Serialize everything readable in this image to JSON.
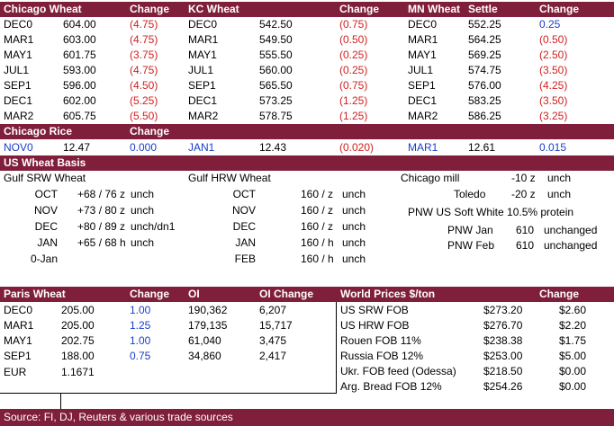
{
  "futures_header": {
    "chicago_label": "Chicago Wheat",
    "change1": "Change",
    "kc_label": "KC Wheat",
    "change2": "Change",
    "mn_label": "MN Wheat",
    "settle": "Settle",
    "change3": "Change"
  },
  "futures_rows": [
    {
      "c_m": "DEC0",
      "c_p": "604.00",
      "c_c": "(4.75)",
      "k_m": "DEC0",
      "k_p": "542.50",
      "k_c": "(0.75)",
      "m_m": "DEC0",
      "m_p": "552.25",
      "m_c": "0.25",
      "m_c_pos": true
    },
    {
      "c_m": "MAR1",
      "c_p": "603.00",
      "c_c": "(4.75)",
      "k_m": "MAR1",
      "k_p": "549.50",
      "k_c": "(0.50)",
      "m_m": "MAR1",
      "m_p": "564.25",
      "m_c": "(0.50)",
      "m_c_pos": false
    },
    {
      "c_m": "MAY1",
      "c_p": "601.75",
      "c_c": "(3.75)",
      "k_m": "MAY1",
      "k_p": "555.50",
      "k_c": "(0.25)",
      "m_m": "MAY1",
      "m_p": "569.25",
      "m_c": "(2.50)",
      "m_c_pos": false
    },
    {
      "c_m": "JUL1",
      "c_p": "593.00",
      "c_c": "(4.75)",
      "k_m": "JUL1",
      "k_p": "560.00",
      "k_c": "(0.25)",
      "m_m": "JUL1",
      "m_p": "574.75",
      "m_c": "(3.50)",
      "m_c_pos": false
    },
    {
      "c_m": "SEP1",
      "c_p": "596.00",
      "c_c": "(4.50)",
      "k_m": "SEP1",
      "k_p": "565.50",
      "k_c": "(0.75)",
      "m_m": "SEP1",
      "m_p": "576.00",
      "m_c": "(4.25)",
      "m_c_pos": false
    },
    {
      "c_m": "DEC1",
      "c_p": "602.00",
      "c_c": "(5.25)",
      "k_m": "DEC1",
      "k_p": "573.25",
      "k_c": "(1.25)",
      "m_m": "DEC1",
      "m_p": "583.25",
      "m_c": "(3.50)",
      "m_c_pos": false
    },
    {
      "c_m": "MAR2",
      "c_p": "605.75",
      "c_c": "(5.50)",
      "k_m": "MAR2",
      "k_p": "578.75",
      "k_c": "(1.25)",
      "m_m": "MAR2",
      "m_p": "586.25",
      "m_c": "(3.25)",
      "m_c_pos": false
    }
  ],
  "rice": {
    "label": "Chicago Rice",
    "change": "Change",
    "m1": "NOV0",
    "p1": "12.47",
    "c1": "0.000",
    "m2": "JAN1",
    "p2": "12.43",
    "c2": "(0.020)",
    "m3": "MAR1",
    "p3": "12.61",
    "c3": "0.015"
  },
  "basis": {
    "label": "US Wheat Basis",
    "gulf_srw": "Gulf SRW Wheat",
    "gulf_hrw": "Gulf HRW Wheat",
    "srw_rows": [
      {
        "m": "OCT",
        "v": "+68 / 76 z",
        "s": "unch"
      },
      {
        "m": "NOV",
        "v": "+73 / 80 z",
        "s": "unch"
      },
      {
        "m": "DEC",
        "v": "+80 / 89 z",
        "s": "unch/dn1"
      },
      {
        "m": "JAN",
        "v": "+65 / 68 h",
        "s": "unch"
      },
      {
        "m": "0-Jan",
        "v": "",
        "s": ""
      }
    ],
    "hrw_rows": [
      {
        "m": "OCT",
        "v": "160 / z",
        "s": "unch"
      },
      {
        "m": "NOV",
        "v": "160 / z",
        "s": "unch"
      },
      {
        "m": "DEC",
        "v": "160 / z",
        "s": "unch"
      },
      {
        "m": "JAN",
        "v": "160 / h",
        "s": "unch"
      },
      {
        "m": "FEB",
        "v": "160 / h",
        "s": "unch"
      }
    ],
    "chicago_mill": "Chicago mill",
    "chicago_mill_v": "-10 z",
    "chicago_mill_s": "unch",
    "toledo": "Toledo",
    "toledo_v": "-20 z",
    "toledo_s": "unch",
    "pnw_label": "PNW US Soft White 10.5% protein",
    "pnw_jan": "PNW Jan",
    "pnw_jan_v": "610",
    "pnw_jan_s": "unchanged",
    "pnw_feb": "PNW Feb",
    "pnw_feb_v": "610",
    "pnw_feb_s": "unchanged"
  },
  "paris": {
    "label": "Paris Wheat",
    "change": "Change",
    "oi": "OI",
    "oi_change": "OI Change",
    "rows": [
      {
        "m": "DEC0",
        "p": "205.00",
        "c": "1.00",
        "oi": "190,362",
        "oic": "6,207"
      },
      {
        "m": "MAR1",
        "p": "205.00",
        "c": "1.25",
        "oi": "179,135",
        "oic": "15,717"
      },
      {
        "m": "MAY1",
        "p": "202.75",
        "c": "1.00",
        "oi": "61,040",
        "oic": "3,475"
      },
      {
        "m": "SEP1",
        "p": "188.00",
        "c": "0.75",
        "oi": "34,860",
        "oic": "2,417"
      }
    ],
    "eur_label": "EUR",
    "eur_value": "1.1671"
  },
  "world": {
    "label": "World Prices $/ton",
    "change": "Change",
    "rows": [
      {
        "n": "US SRW FOB",
        "p": "$273.20",
        "c": "$2.60"
      },
      {
        "n": "US HRW FOB",
        "p": "$276.70",
        "c": "$2.20"
      },
      {
        "n": "Rouen FOB 11%",
        "p": "$238.38",
        "c": "$1.75"
      },
      {
        "n": "Russia FOB 12%",
        "p": "$253.00",
        "c": "$5.00"
      },
      {
        "n": "Ukr. FOB feed (Odessa)",
        "p": "$218.50",
        "c": "$0.00"
      },
      {
        "n": "Arg. Bread FOB 12%",
        "p": "$254.26",
        "c": "$0.00"
      }
    ]
  },
  "source": "Source: FI, DJ, Reuters & various trade sources",
  "colors": {
    "header_bg": "#7f1f3b",
    "negative": "#d01f1f",
    "positive": "#1b3dc8"
  }
}
